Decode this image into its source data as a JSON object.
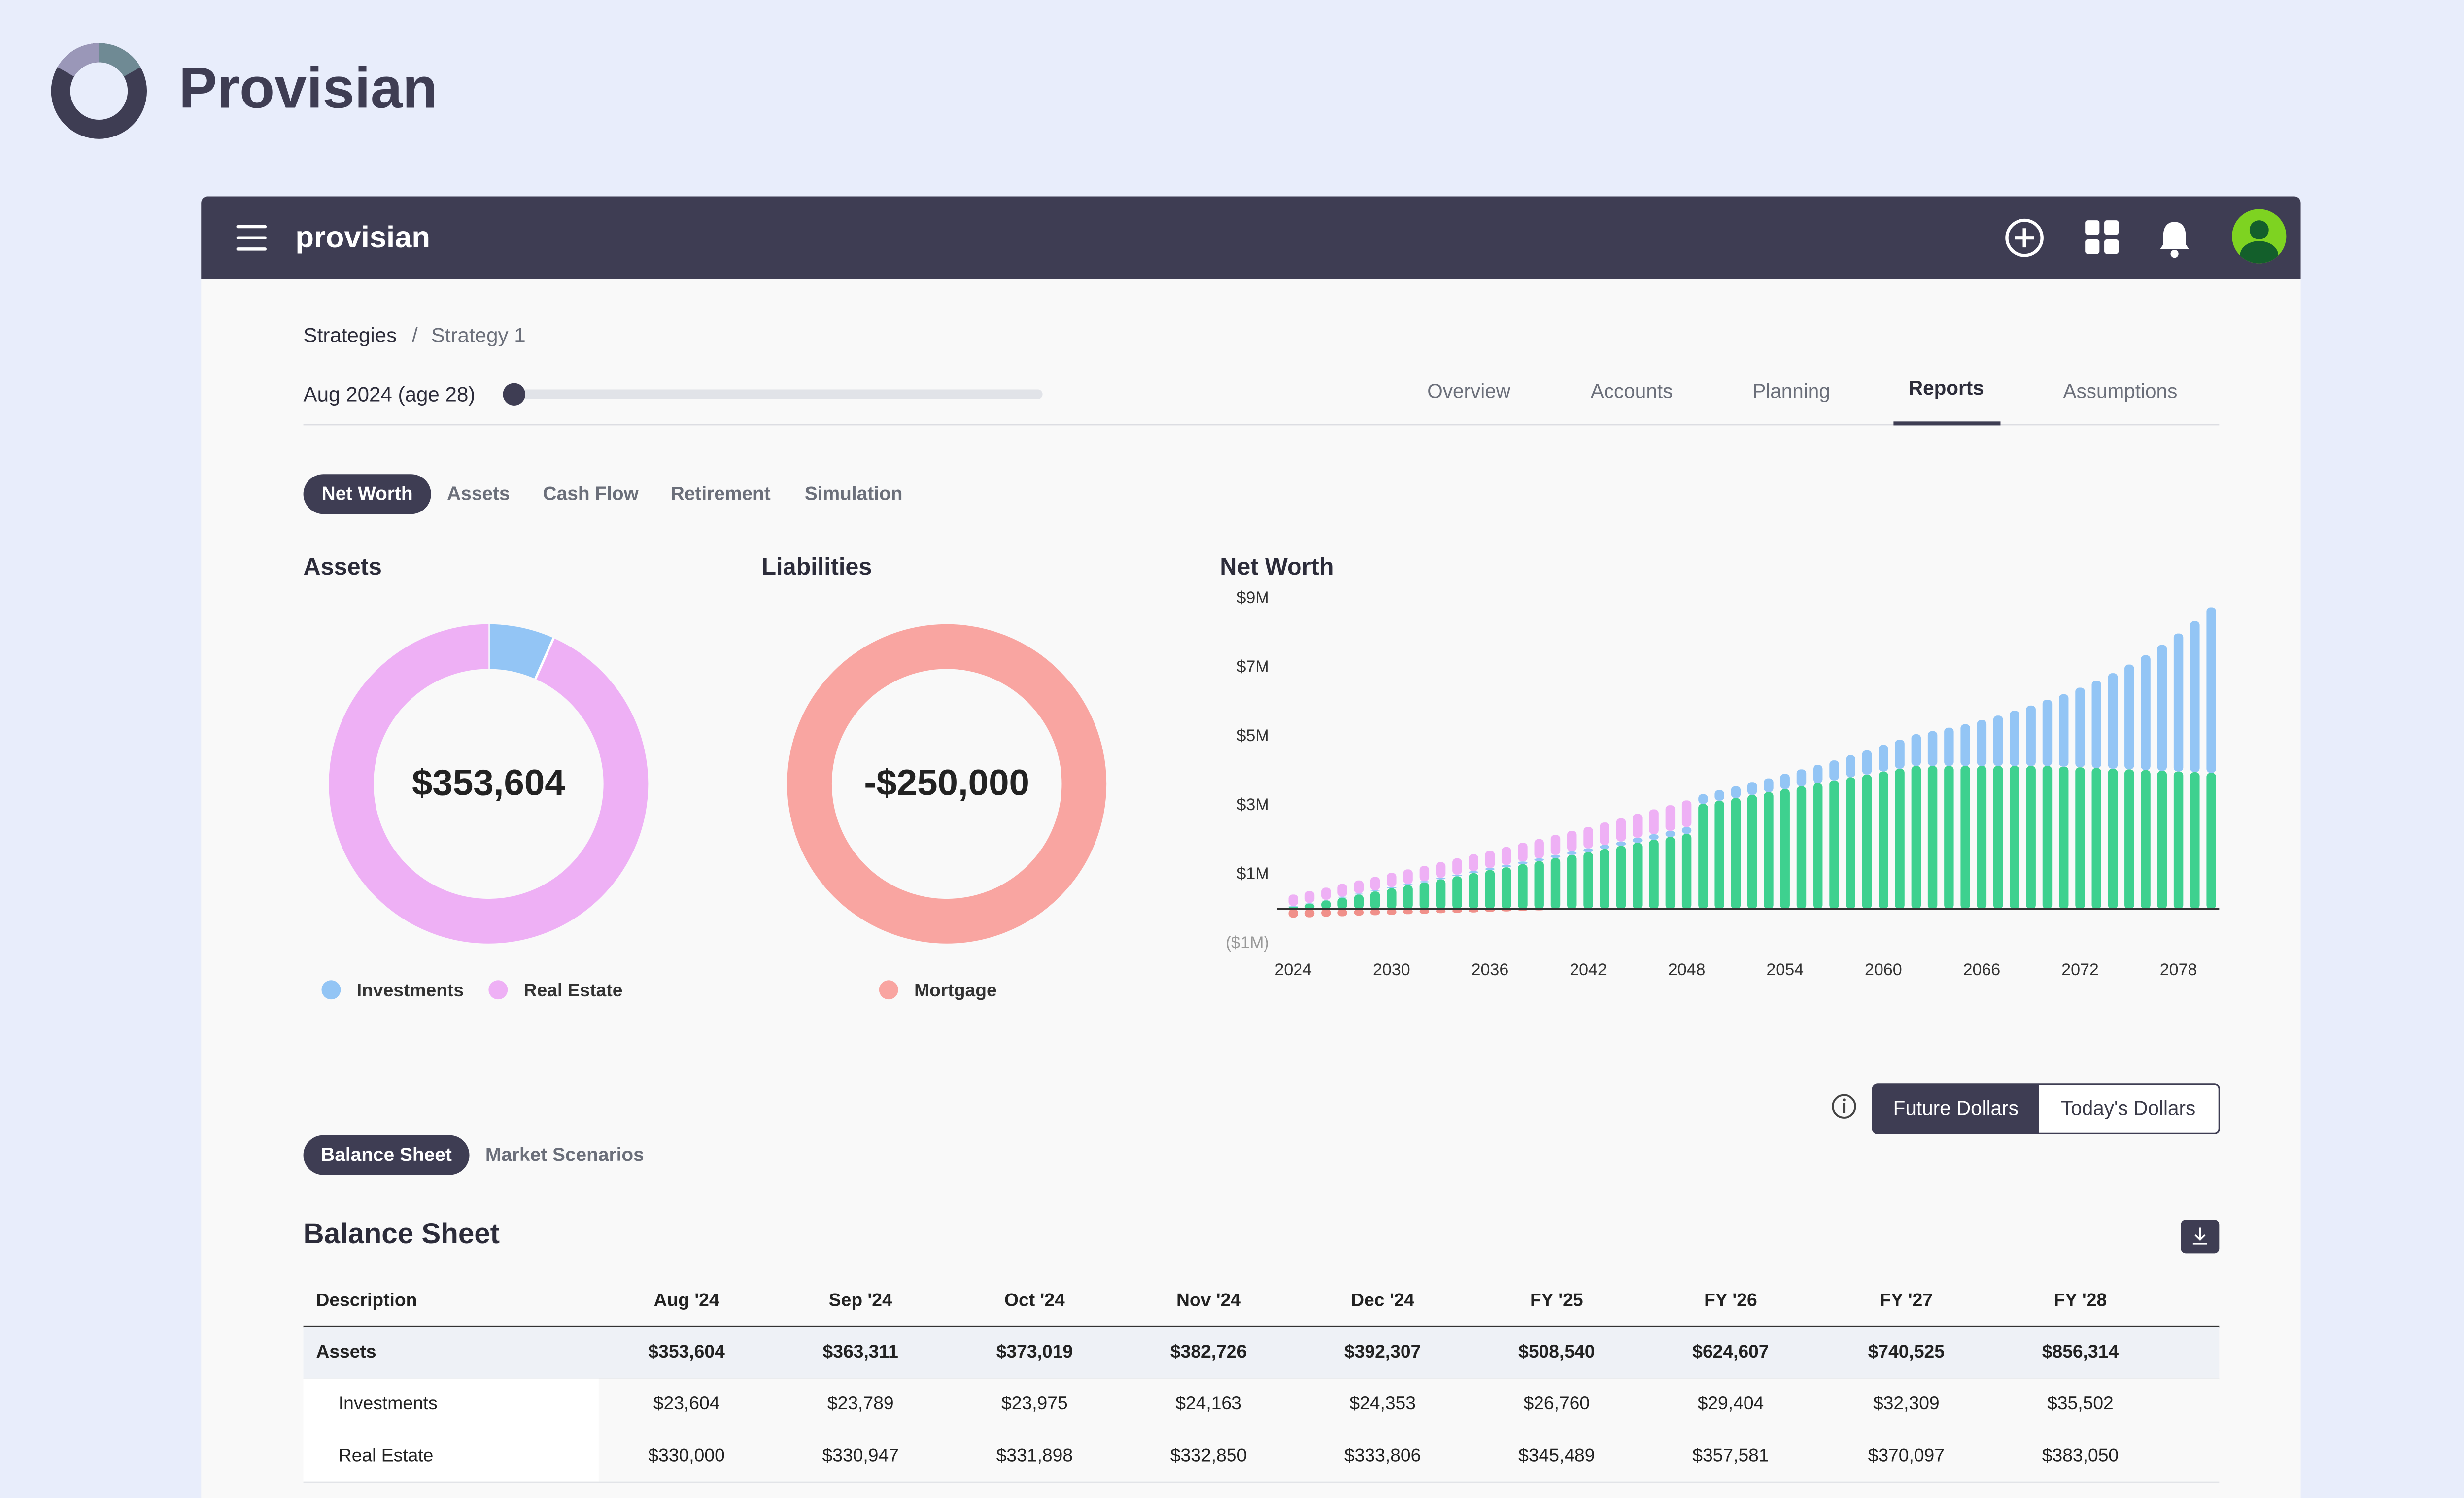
{
  "brand": "Provisian",
  "nav": {
    "logo": "provisian"
  },
  "breadcrumb": {
    "items": [
      "Strategies",
      "Strategy 1"
    ],
    "separator": "/"
  },
  "timeline": {
    "label": "Aug 2024 (age 28)"
  },
  "tabs": [
    "Overview",
    "Accounts",
    "Planning",
    "Reports",
    "Assumptions"
  ],
  "report_tabs": [
    "Net Worth",
    "Assets",
    "Cash Flow",
    "Retirement",
    "Simulation"
  ],
  "dollar_toggle": [
    "Future Dollars",
    "Today's Dollars"
  ],
  "section_tabs": [
    "Balance Sheet",
    "Market Scenarios"
  ],
  "chart_data": [
    {
      "type": "pie",
      "title": "Assets",
      "center_label": "$353,604",
      "categories": [
        "Investments",
        "Real Estate"
      ],
      "values": [
        23604,
        330000
      ],
      "colors": [
        "#93c5f5",
        "#eeb0f5"
      ]
    },
    {
      "type": "pie",
      "title": "Liabilities",
      "center_label": "-$250,000",
      "categories": [
        "Mortgage"
      ],
      "values": [
        -250000
      ],
      "colors": [
        "#f9a5a1"
      ]
    },
    {
      "type": "bar",
      "stacked": true,
      "title": "Net Worth",
      "grid": false,
      "x": [
        2024,
        2025,
        2026,
        2027,
        2028,
        2029,
        2030,
        2031,
        2032,
        2033,
        2034,
        2035,
        2036,
        2037,
        2038,
        2039,
        2040,
        2041,
        2042,
        2043,
        2044,
        2045,
        2046,
        2047,
        2048,
        2049,
        2050,
        2051,
        2052,
        2053,
        2054,
        2055,
        2056,
        2057,
        2058,
        2059,
        2060,
        2061,
        2062,
        2063,
        2064,
        2065,
        2066,
        2067,
        2068,
        2069,
        2070,
        2071,
        2072,
        2073,
        2074,
        2075,
        2076,
        2077,
        2078,
        2079,
        2080
      ],
      "xticks": [
        2024,
        2030,
        2036,
        2042,
        2048,
        2054,
        2060,
        2066,
        2072,
        2078
      ],
      "ylim": [
        -1,
        9
      ],
      "yticks": [
        {
          "value": 9,
          "label": "$9M"
        },
        {
          "value": 7,
          "label": "$7M"
        },
        {
          "value": 5,
          "label": "$5M"
        },
        {
          "value": 3,
          "label": "$3M"
        },
        {
          "value": 1,
          "label": "$1M"
        },
        {
          "value": -1,
          "label": "($1M)"
        }
      ],
      "series": [
        {
          "color": "#3ed18f",
          "values": [
            0.07,
            0.16,
            0.25,
            0.33,
            0.42,
            0.51,
            0.6,
            0.69,
            0.77,
            0.86,
            0.95,
            1.04,
            1.13,
            1.21,
            1.3,
            1.39,
            1.48,
            1.57,
            1.65,
            1.74,
            1.83,
            1.92,
            2.01,
            2.09,
            2.18,
            3.05,
            3.14,
            3.22,
            3.31,
            3.39,
            3.48,
            3.56,
            3.65,
            3.73,
            3.82,
            3.9,
            3.99,
            4.07,
            4.15,
            4.15,
            4.15,
            4.15,
            4.15,
            4.15,
            4.15,
            4.15,
            4.15,
            4.13,
            4.11,
            4.09,
            4.07,
            4.05,
            4.03,
            4.01,
            3.99,
            3.97,
            3.95
          ]
        },
        {
          "color": "#93c5f5",
          "values": [
            0.02,
            0.02,
            0.02,
            0.03,
            0.03,
            0.03,
            0.04,
            0.04,
            0.04,
            0.05,
            0.05,
            0.06,
            0.06,
            0.07,
            0.08,
            0.08,
            0.09,
            0.1,
            0.11,
            0.12,
            0.13,
            0.15,
            0.16,
            0.18,
            0.2,
            0.28,
            0.31,
            0.34,
            0.37,
            0.4,
            0.44,
            0.49,
            0.53,
            0.58,
            0.64,
            0.7,
            0.77,
            0.84,
            0.92,
            1.01,
            1.11,
            1.21,
            1.33,
            1.46,
            1.6,
            1.75,
            1.92,
            2.1,
            2.31,
            2.53,
            2.77,
            3.04,
            3.33,
            3.65,
            4.0,
            4.38,
            4.8
          ]
        },
        {
          "color": "#eeb0f5",
          "values": [
            0.33,
            0.34,
            0.35,
            0.37,
            0.38,
            0.39,
            0.41,
            0.42,
            0.44,
            0.45,
            0.47,
            0.49,
            0.5,
            0.52,
            0.54,
            0.56,
            0.58,
            0.6,
            0.62,
            0.65,
            0.67,
            0.69,
            0.72,
            0.74,
            0.77,
            0,
            0,
            0,
            0,
            0,
            0,
            0,
            0,
            0,
            0,
            0,
            0,
            0,
            0,
            0,
            0,
            0,
            0,
            0,
            0,
            0,
            0,
            0,
            0,
            0,
            0,
            0,
            0,
            0,
            0,
            0,
            0
          ]
        },
        {
          "color": "#f0908a",
          "values": [
            -0.25,
            -0.24,
            -0.22,
            -0.21,
            -0.19,
            -0.18,
            -0.17,
            -0.15,
            -0.14,
            -0.12,
            -0.11,
            -0.1,
            -0.08,
            -0.07,
            -0.05,
            -0.04,
            -0.03,
            -0.01,
            0,
            0,
            0,
            0,
            0,
            0,
            0,
            0,
            0,
            0,
            0,
            0,
            0,
            0,
            0,
            0,
            0,
            0,
            0,
            0,
            0,
            0,
            0,
            0,
            0,
            0,
            0,
            0,
            0,
            0,
            0,
            0,
            0,
            0,
            0,
            0,
            0,
            0,
            0
          ]
        }
      ]
    }
  ],
  "table": {
    "title": "Balance Sheet",
    "columns": [
      "Description",
      "Aug '24",
      "Sep '24",
      "Oct '24",
      "Nov '24",
      "Dec '24",
      "FY '25",
      "FY '26",
      "FY '27",
      "FY '28"
    ],
    "rows": [
      [
        "Assets",
        "$353,604",
        "$363,311",
        "$373,019",
        "$382,726",
        "$392,307",
        "$508,540",
        "$624,607",
        "$740,525",
        "$856,314"
      ],
      [
        "Investments",
        "$23,604",
        "$23,789",
        "$23,975",
        "$24,163",
        "$24,353",
        "$26,760",
        "$29,404",
        "$32,309",
        "$35,502"
      ],
      [
        "Real Estate",
        "$330,000",
        "$330,947",
        "$331,898",
        "$332,850",
        "$333,806",
        "$345,489",
        "$357,581",
        "$370,097",
        "$383,050"
      ]
    ]
  }
}
